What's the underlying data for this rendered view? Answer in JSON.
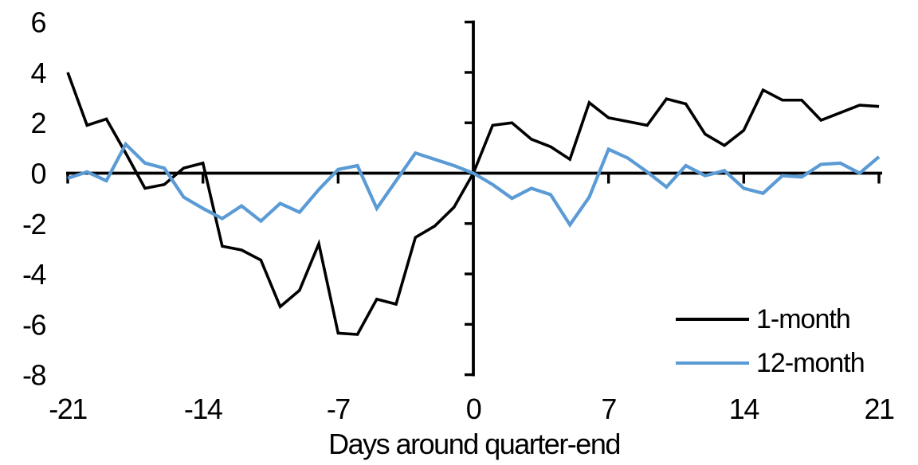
{
  "chart_data": {
    "type": "line",
    "title": "",
    "xlabel": "Days around quarter-end",
    "ylabel": "",
    "xlim": [
      -21,
      21
    ],
    "ylim": [
      -8,
      6
    ],
    "x_ticks": [
      -21,
      -14,
      -7,
      0,
      7,
      14,
      21
    ],
    "y_ticks": [
      6,
      4,
      2,
      0,
      -2,
      -4,
      -6,
      -8
    ],
    "grid": false,
    "legend_position": "inside-bottom-right",
    "x": [
      -21,
      -20,
      -19,
      -18,
      -17,
      -16,
      -15,
      -14,
      -13,
      -12,
      -11,
      -10,
      -9,
      -8,
      -7,
      -6,
      -5,
      -4,
      -3,
      -2,
      -1,
      0,
      1,
      2,
      3,
      4,
      5,
      6,
      7,
      8,
      9,
      10,
      11,
      12,
      13,
      14,
      15,
      16,
      17,
      18,
      19,
      20,
      21
    ],
    "series": [
      {
        "name": "1-month",
        "color": "#000000",
        "values": [
          4.0,
          1.9,
          2.15,
          0.8,
          -0.6,
          -0.45,
          0.2,
          0.4,
          -2.9,
          -3.05,
          -3.45,
          -5.3,
          -4.65,
          -2.8,
          -6.35,
          -6.4,
          -5.0,
          -5.2,
          -2.55,
          -2.1,
          -1.35,
          0.0,
          1.9,
          2.0,
          1.35,
          1.05,
          0.55,
          2.8,
          2.2,
          2.05,
          1.9,
          2.95,
          2.75,
          1.55,
          1.1,
          1.7,
          3.3,
          2.9,
          2.9,
          2.1,
          2.4,
          2.7,
          2.65
        ]
      },
      {
        "name": "12-month",
        "color": "#5B9BD5",
        "values": [
          -0.2,
          0.05,
          -0.3,
          1.15,
          0.4,
          0.2,
          -0.95,
          -1.4,
          -1.8,
          -1.3,
          -1.9,
          -1.2,
          -1.55,
          -0.65,
          0.15,
          0.3,
          -1.4,
          -0.3,
          0.8,
          0.55,
          0.3,
          0.0,
          -0.45,
          -1.0,
          -0.6,
          -0.85,
          -2.05,
          -0.95,
          0.95,
          0.6,
          0.05,
          -0.55,
          0.3,
          -0.1,
          0.1,
          -0.6,
          -0.8,
          -0.1,
          -0.15,
          0.35,
          0.4,
          0.0,
          0.65
        ]
      }
    ]
  },
  "colors": {
    "background": "#FFFFFF",
    "axis": "#000000",
    "series_1_month": "#000000",
    "series_12_month": "#5B9BD5"
  }
}
